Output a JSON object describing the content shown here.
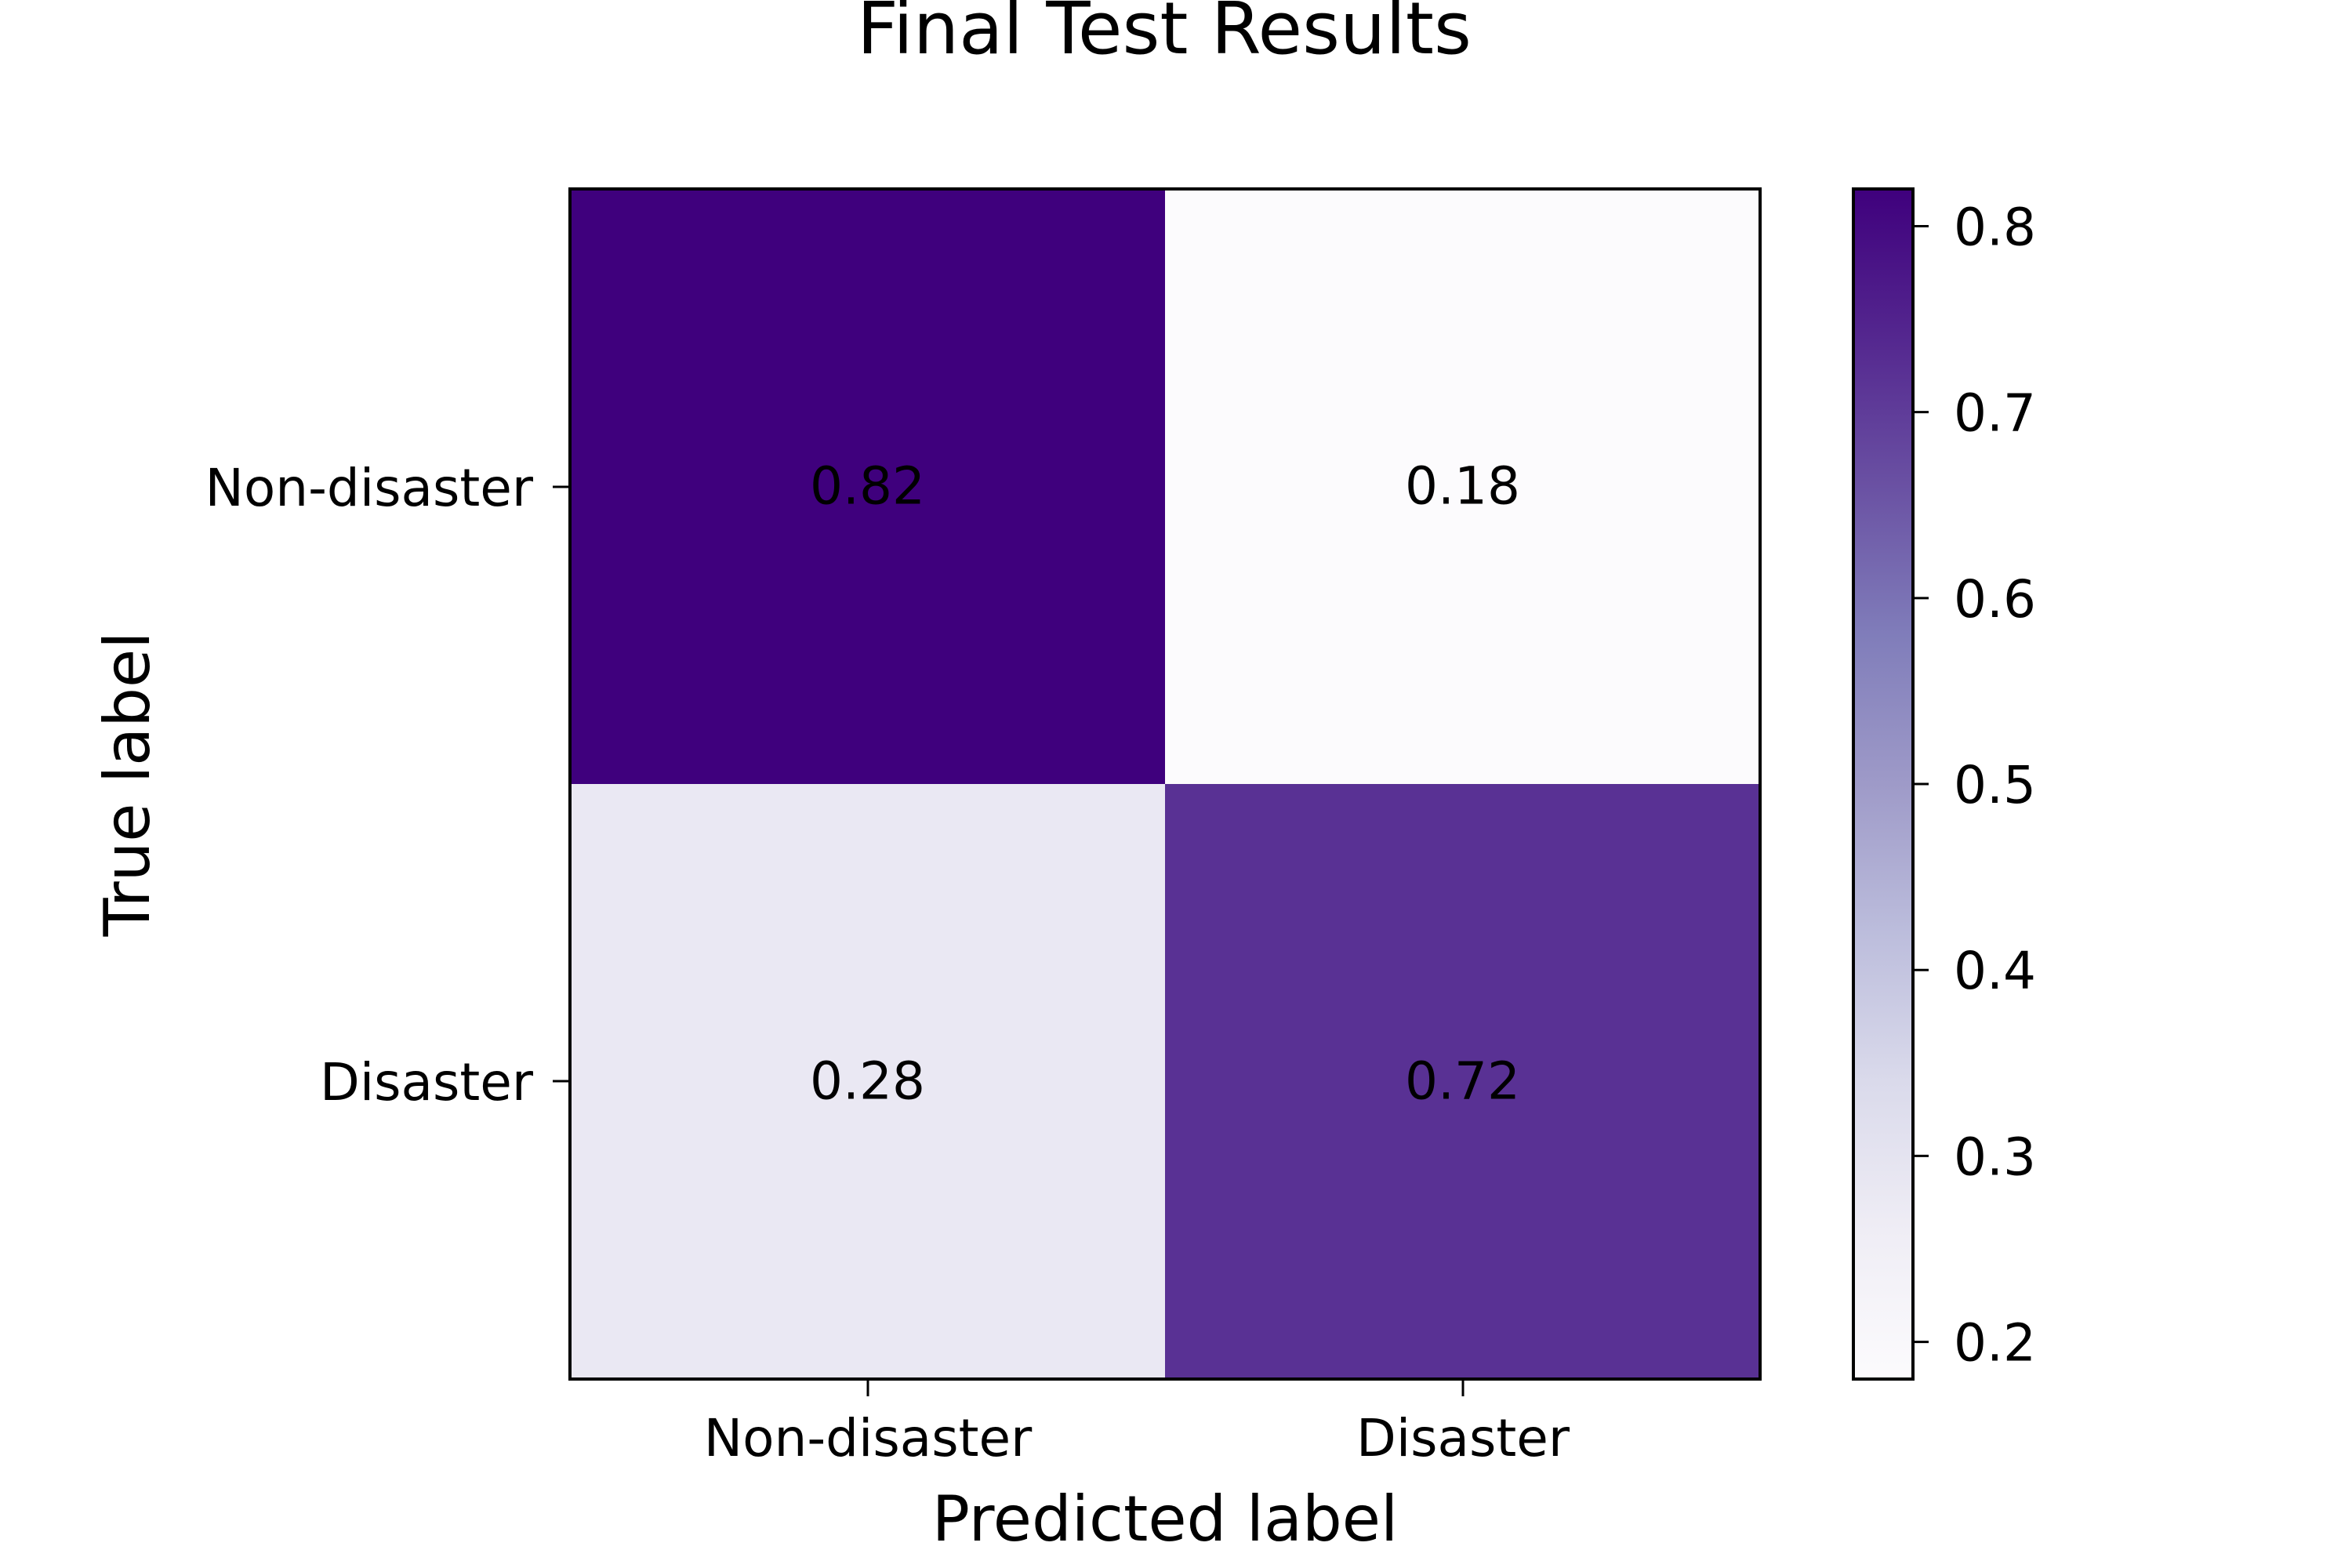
{
  "chart_data": {
    "type": "heatmap",
    "title": "Final Test Results",
    "xlabel": "Predicted label",
    "ylabel": "True label",
    "x_categories": [
      "Non-disaster",
      "Disaster"
    ],
    "y_categories": [
      "Non-disaster",
      "Disaster"
    ],
    "matrix": [
      [
        0.82,
        0.18
      ],
      [
        0.28,
        0.72
      ]
    ],
    "value_labels": [
      [
        "0.82",
        "0.18"
      ],
      [
        "0.28",
        "0.72"
      ]
    ],
    "colormap": "Purples",
    "colorbar": {
      "range": [
        0.18,
        0.82
      ],
      "ticks": [
        0.2,
        0.3,
        0.4,
        0.5,
        0.6,
        0.7,
        0.8
      ],
      "tick_labels": [
        "0.2",
        "0.3",
        "0.4",
        "0.5",
        "0.6",
        "0.7",
        "0.8"
      ]
    },
    "colors": {
      "cell_high": "#3f007d",
      "cell_low": "#fcfbfd",
      "text_on_dark": "#ffffff",
      "text_on_light": "#3f007d"
    }
  }
}
